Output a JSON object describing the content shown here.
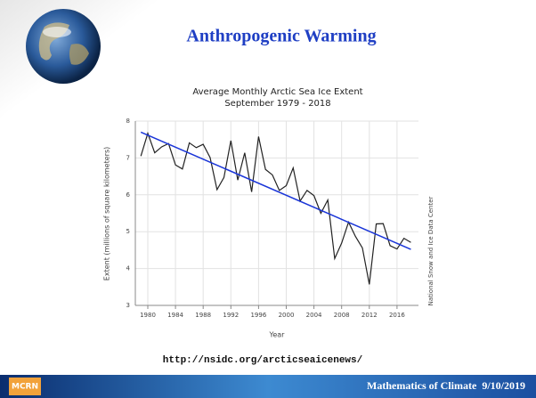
{
  "slide": {
    "title": "Anthropogenic Warming",
    "url": "http://nsidc.org/arcticseaicenews/",
    "logo": "MCRN",
    "footer": "Mathematics of Climate  9/10/2019"
  },
  "chart_data": {
    "type": "line",
    "title": "Average Monthly Arctic Sea Ice Extent",
    "subtitle": "September 1979 - 2018",
    "x_label": "Year",
    "y_label": "Extent (millions of square kilometers)",
    "annotation": "National Snow and Ice Data Center",
    "x": [
      1979,
      1980,
      1981,
      1982,
      1983,
      1984,
      1985,
      1986,
      1987,
      1988,
      1989,
      1990,
      1991,
      1992,
      1993,
      1994,
      1995,
      1996,
      1997,
      1998,
      1999,
      2000,
      2001,
      2002,
      2003,
      2004,
      2005,
      2006,
      2007,
      2008,
      2009,
      2010,
      2011,
      2012,
      2013,
      2014,
      2015,
      2016,
      2017,
      2018
    ],
    "values": [
      7.05,
      7.67,
      7.14,
      7.3,
      7.39,
      6.81,
      6.7,
      7.41,
      7.28,
      7.37,
      7.01,
      6.14,
      6.47,
      7.47,
      6.4,
      7.14,
      6.08,
      7.58,
      6.69,
      6.54,
      6.12,
      6.25,
      6.73,
      5.83,
      6.12,
      5.98,
      5.5,
      5.86,
      4.27,
      4.69,
      5.26,
      4.87,
      4.56,
      3.57,
      5.21,
      5.22,
      4.62,
      4.53,
      4.82,
      4.71
    ],
    "color": "#222222",
    "trend": {
      "x": [
        1979,
        2018
      ],
      "values": [
        7.7,
        4.52
      ],
      "color": "#1a35d8"
    },
    "xlim": [
      1978.2,
      2019.1
    ],
    "xticks": [
      1980,
      1984,
      1988,
      1992,
      1996,
      2000,
      2004,
      2008,
      2012,
      2016
    ],
    "ylim": [
      3,
      8
    ],
    "yticks": [
      3,
      4,
      5,
      6,
      7,
      8
    ],
    "grid": true
  }
}
